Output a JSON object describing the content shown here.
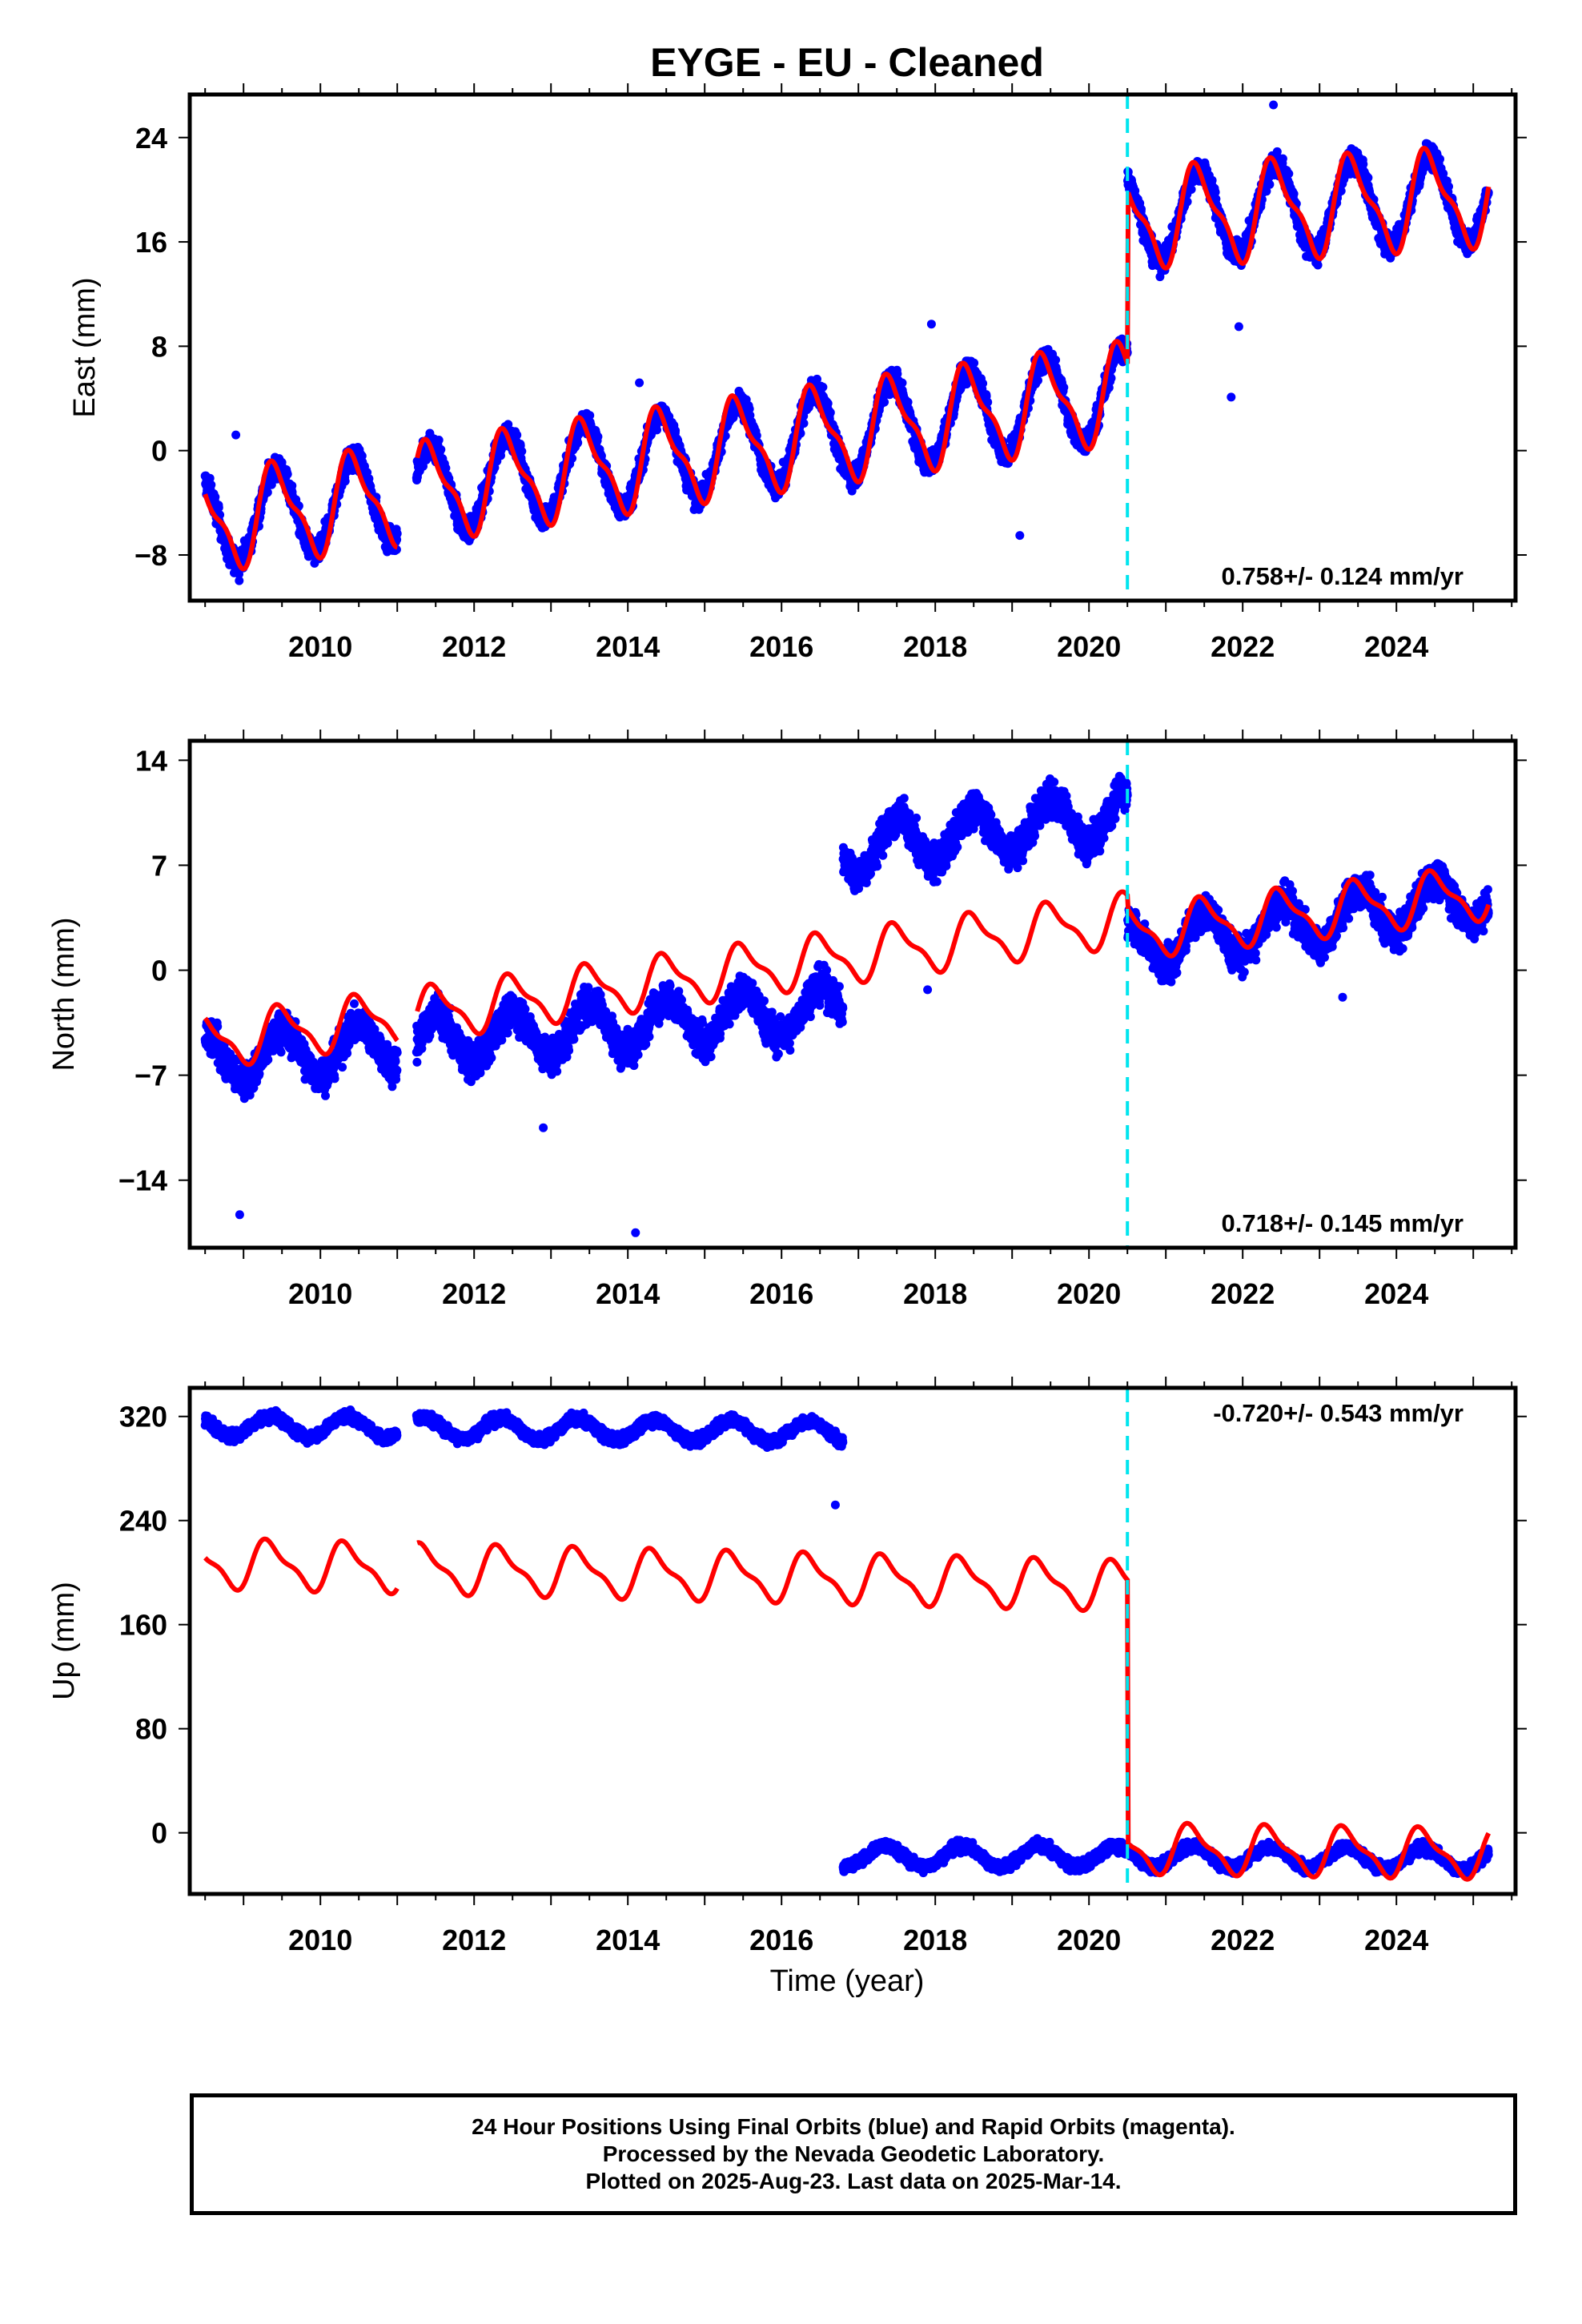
{
  "title": "EYGE  - EU - Cleaned",
  "footer": {
    "line1": "24 Hour Positions Using Final Orbits (blue) and Rapid Orbits (magenta).",
    "line2": "Processed by the Nevada Geodetic Laboratory.",
    "line3": "Plotted on 2025-Aug-23. Last data on 2025-Mar-14."
  },
  "colors": {
    "data_points": "#0000ff",
    "model_fit": "#ff0000",
    "offset_line": "#00e5ee",
    "frame": "#000000"
  },
  "chart_data": [
    {
      "type": "scatter",
      "panel": "east",
      "ylabel": "East (mm)",
      "xlabel": "",
      "xlim": [
        2008.3,
        2025.55
      ],
      "ylim": [
        -11.5,
        27.3
      ],
      "xticks": [
        2010,
        2012,
        2014,
        2016,
        2018,
        2020,
        2022,
        2024
      ],
      "yticks": [
        -8,
        0,
        8,
        16,
        24
      ],
      "velocity_label": "0.758+/- 0.124 mm/yr",
      "velocity_label_position": "bottom-right",
      "offset_epoch": 2020.5,
      "data_span": [
        2008.5,
        2025.2
      ],
      "gaps": [
        [
          2011.0,
          2011.25
        ]
      ],
      "segments": [
        {
          "start": 2008.5,
          "end": 2020.5,
          "value_at_start": -5.5,
          "value_at_end": 4.5
        },
        {
          "start": 2020.5,
          "end": 2025.2,
          "value_at_start": 17.8,
          "value_at_end": 19.5
        }
      ],
      "seasonal_amplitude": 3.4,
      "seasonal_phase": 0.18,
      "scatter_noise": 1.1,
      "series": [
        {
          "name": "24 Hour Positions (Final Orbits)",
          "kind": "points",
          "color": "#0000ff"
        },
        {
          "name": "Model",
          "kind": "line",
          "color": "#ff0000"
        }
      ],
      "outliers": [
        [
          2008.9,
          1.2
        ],
        [
          2014.15,
          5.2
        ],
        [
          2017.95,
          9.7
        ],
        [
          2021.85,
          4.1
        ],
        [
          2021.95,
          9.5
        ],
        [
          2022.4,
          26.5
        ],
        [
          2019.1,
          -6.5
        ]
      ]
    },
    {
      "type": "scatter",
      "panel": "north",
      "ylabel": "North (mm)",
      "xlabel": "",
      "xlim": [
        2008.3,
        2025.55
      ],
      "ylim": [
        -18.5,
        15.3
      ],
      "xticks": [
        2010,
        2012,
        2014,
        2016,
        2018,
        2020,
        2022,
        2024
      ],
      "yticks": [
        -14,
        -7,
        0,
        7,
        14
      ],
      "velocity_label": "0.718+/- 0.145 mm/yr",
      "velocity_label_position": "bottom-right",
      "offset_epoch": 2020.5,
      "data_span": [
        2008.5,
        2025.2
      ],
      "gaps": [
        [
          2011.0,
          2011.25
        ]
      ],
      "segments": [
        {
          "start": 2008.5,
          "end": 2016.8,
          "value_at_start": -6.0,
          "value_at_end": -2.5
        },
        {
          "start": 2016.8,
          "end": 2020.5,
          "value_at_start": 8.0,
          "value_at_end": 10.5
        },
        {
          "start": 2020.5,
          "end": 2025.2,
          "value_at_start": 1.5,
          "value_at_end": 5.0
        }
      ],
      "model_segments": [
        {
          "start": 2008.5,
          "end": 2020.5,
          "value_at_start": -4.8,
          "value_at_end": 3.4
        },
        {
          "start": 2020.5,
          "end": 2025.2,
          "value_at_start": 2.5,
          "value_at_end": 5.2
        }
      ],
      "seasonal_amplitude": 1.6,
      "seasonal_phase": 0.25,
      "scatter_noise": 1.4,
      "series": [
        {
          "name": "24 Hour Positions (Final Orbits)",
          "kind": "points",
          "color": "#0000ff"
        },
        {
          "name": "Model",
          "kind": "line",
          "color": "#ff0000"
        }
      ],
      "outliers": [
        [
          2008.95,
          -16.3
        ],
        [
          2014.1,
          -17.5
        ],
        [
          2012.9,
          -10.5
        ],
        [
          2017.9,
          -1.3
        ],
        [
          2023.3,
          -1.8
        ]
      ]
    },
    {
      "type": "scatter",
      "panel": "up",
      "ylabel": "Up (mm)",
      "xlabel": "Time (year)",
      "xlim": [
        2008.3,
        2025.55
      ],
      "ylim": [
        -47,
        342
      ],
      "xticks": [
        2010,
        2012,
        2014,
        2016,
        2018,
        2020,
        2022,
        2024
      ],
      "yticks": [
        0,
        80,
        160,
        240,
        320
      ],
      "velocity_label": "-0.720+/- 0.543 mm/yr",
      "velocity_label_position": "top-right",
      "offset_epoch": 2020.5,
      "data_span": [
        2008.5,
        2025.2
      ],
      "gaps": [
        [
          2011.0,
          2011.25
        ]
      ],
      "segments": [
        {
          "start": 2008.5,
          "end": 2016.8,
          "value_at_start": 313,
          "value_at_end": 308
        },
        {
          "start": 2016.8,
          "end": 2020.5,
          "value_at_start": -18,
          "value_at_end": -18
        },
        {
          "start": 2020.5,
          "end": 2025.2,
          "value_at_start": -18,
          "value_at_end": -20
        }
      ],
      "model_segments": [
        {
          "start": 2008.5,
          "end": 2020.5,
          "value_at_start": 207,
          "value_at_end": 190
        },
        {
          "start": 2020.5,
          "end": 2025.2,
          "value_at_start": -12,
          "value_at_end": -16
        }
      ],
      "seasonal_amplitude": 8,
      "model_amplitude": 17,
      "seasonal_phase": 0.1,
      "scatter_noise": 5,
      "series": [
        {
          "name": "24 Hour Positions (Final Orbits)",
          "kind": "points",
          "color": "#0000ff"
        },
        {
          "name": "Model",
          "kind": "line",
          "color": "#ff0000"
        }
      ],
      "outliers": [
        [
          2016.7,
          252
        ]
      ]
    }
  ]
}
